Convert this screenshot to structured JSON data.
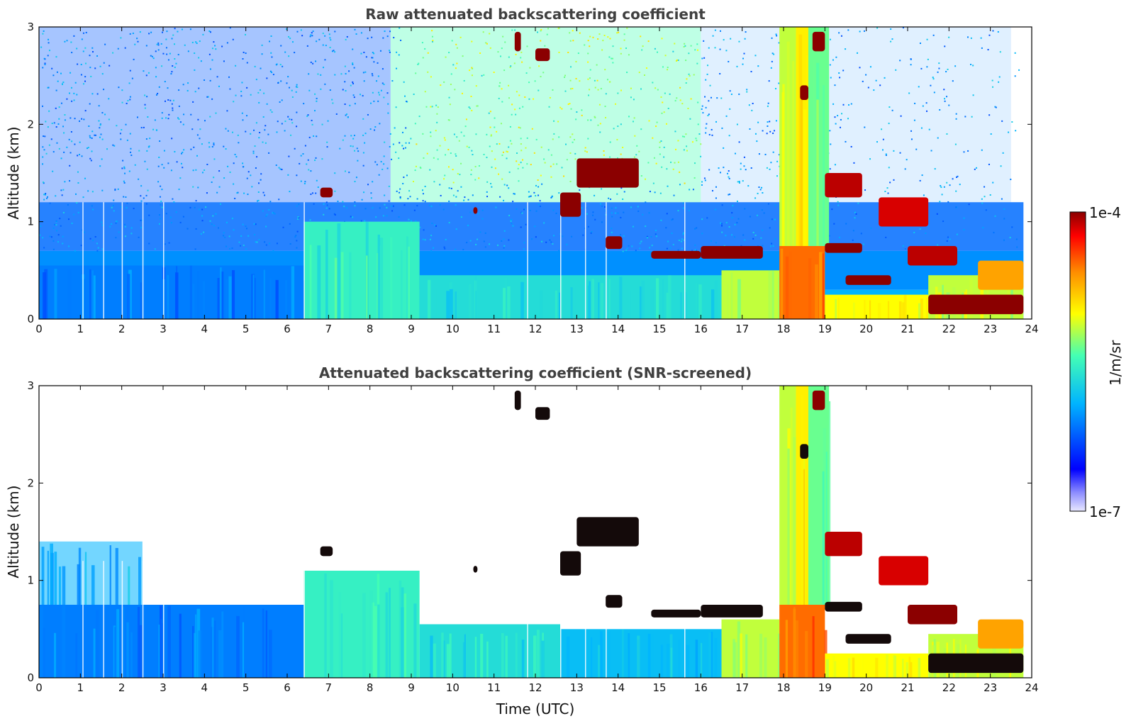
{
  "chart_data": [
    {
      "type": "heatmap",
      "title": "Raw attenuated backscattering coefficient",
      "xlabel": "",
      "ylabel": "Altitude (km)",
      "xlim": [
        0,
        24
      ],
      "ylim": [
        0,
        3
      ],
      "x_ticks": [
        "0",
        "1",
        "2",
        "3",
        "4",
        "5",
        "6",
        "7",
        "8",
        "9",
        "10",
        "11",
        "12",
        "13",
        "14",
        "15",
        "16",
        "17",
        "18",
        "19",
        "20",
        "21",
        "22",
        "23",
        "24"
      ],
      "y_ticks": [
        "0",
        "1",
        "2",
        "3"
      ],
      "data_extent_x": [
        0,
        23.8
      ],
      "background": [
        {
          "y": [
            0,
            0.3
          ],
          "x": [
            0,
            24
          ],
          "level": 0.3
        },
        {
          "y": [
            0.3,
            0.7
          ],
          "x": [
            0,
            24
          ],
          "level": 0.26
        },
        {
          "y": [
            0.7,
            1.2
          ],
          "x": [
            0,
            24
          ],
          "level": 0.22,
          "alpha": 0.85
        },
        {
          "y": [
            1.2,
            3.0
          ],
          "x": [
            0,
            8.5
          ],
          "level": 0.2,
          "alpha": 0.35
        },
        {
          "y": [
            1.2,
            3.0
          ],
          "x": [
            8.5,
            16
          ],
          "level": 0.45,
          "alpha": 0.35
        },
        {
          "y": [
            1.2,
            3.0
          ],
          "x": [
            16,
            23.5
          ],
          "level": 0.25,
          "alpha": 0.12
        }
      ],
      "noise_y_min": 0.7,
      "blocks": [
        {
          "x": [
            0,
            6.4
          ],
          "y": [
            0,
            0.55
          ],
          "level": 0.24
        },
        {
          "x": [
            6.4,
            9.2
          ],
          "y": [
            0,
            1.0
          ],
          "level": 0.42
        },
        {
          "x": [
            9.2,
            16.5
          ],
          "y": [
            0,
            0.45
          ],
          "level": 0.38
        },
        {
          "x": [
            16.5,
            17.9
          ],
          "y": [
            0,
            0.5
          ],
          "level": 0.55
        },
        {
          "x": [
            17.9,
            19.0
          ],
          "y": [
            0,
            0.75
          ],
          "level": 0.78
        },
        {
          "x": [
            17.9,
            18.3
          ],
          "y": [
            0.75,
            3.0
          ],
          "level": 0.55
        },
        {
          "x": [
            18.3,
            18.6
          ],
          "y": [
            0.75,
            3.0
          ],
          "level": 0.62
        },
        {
          "x": [
            18.6,
            19.1
          ],
          "y": [
            0.75,
            3.0
          ],
          "level": 0.48
        },
        {
          "x": [
            19.0,
            21.5
          ],
          "y": [
            0,
            0.25
          ],
          "level": 0.6
        },
        {
          "x": [
            21.5,
            23.8
          ],
          "y": [
            0,
            0.45
          ],
          "level": 0.55
        }
      ],
      "layers": [
        {
          "x": [
            11.5,
            11.65
          ],
          "y": [
            2.75,
            2.95
          ],
          "level": 1.0
        },
        {
          "x": [
            12.0,
            12.35
          ],
          "y": [
            2.65,
            2.78
          ],
          "level": 1.0
        },
        {
          "x": [
            13.0,
            14.5
          ],
          "y": [
            1.35,
            1.65
          ],
          "level": 1.0
        },
        {
          "x": [
            12.6,
            13.1
          ],
          "y": [
            1.05,
            1.3
          ],
          "level": 1.0
        },
        {
          "x": [
            13.7,
            14.1
          ],
          "y": [
            0.72,
            0.85
          ],
          "level": 1.0
        },
        {
          "x": [
            14.8,
            16.0
          ],
          "y": [
            0.62,
            0.7
          ],
          "level": 1.0
        },
        {
          "x": [
            16.0,
            17.5
          ],
          "y": [
            0.62,
            0.75
          ],
          "level": 1.0
        },
        {
          "x": [
            18.7,
            19.0
          ],
          "y": [
            2.75,
            2.95
          ],
          "level": 1.0
        },
        {
          "x": [
            18.4,
            18.6
          ],
          "y": [
            2.25,
            2.4
          ],
          "level": 1.0
        },
        {
          "x": [
            19.0,
            19.9
          ],
          "y": [
            1.25,
            1.5
          ],
          "level": 0.95
        },
        {
          "x": [
            19.0,
            19.9
          ],
          "y": [
            0.68,
            0.78
          ],
          "level": 1.0
        },
        {
          "x": [
            19.5,
            20.6
          ],
          "y": [
            0.35,
            0.45
          ],
          "level": 1.0
        },
        {
          "x": [
            20.3,
            21.5
          ],
          "y": [
            0.95,
            1.25
          ],
          "level": 0.92
        },
        {
          "x": [
            21.0,
            22.2
          ],
          "y": [
            0.55,
            0.75
          ],
          "level": 0.95
        },
        {
          "x": [
            21.5,
            23.8
          ],
          "y": [
            0.05,
            0.25
          ],
          "level": 1.0
        },
        {
          "x": [
            22.7,
            23.8
          ],
          "y": [
            0.3,
            0.6
          ],
          "level": 0.72
        },
        {
          "x": [
            6.8,
            7.1
          ],
          "y": [
            1.25,
            1.35
          ],
          "level": 1.0
        },
        {
          "x": [
            10.5,
            10.6
          ],
          "y": [
            1.08,
            1.15
          ],
          "level": 1.0
        }
      ]
    },
    {
      "type": "heatmap",
      "title": "Attenuated backscattering coefficient (SNR-screened)",
      "xlabel": "Time (UTC)",
      "ylabel": "Altitude (km)",
      "xlim": [
        0,
        24
      ],
      "ylim": [
        0,
        3
      ],
      "x_ticks": [
        "0",
        "1",
        "2",
        "3",
        "4",
        "5",
        "6",
        "7",
        "8",
        "9",
        "10",
        "11",
        "12",
        "13",
        "14",
        "15",
        "16",
        "17",
        "18",
        "19",
        "20",
        "21",
        "22",
        "23",
        "24"
      ],
      "y_ticks": [
        "0",
        "1",
        "2",
        "3"
      ],
      "data_extent_x": [
        0,
        23.8
      ],
      "background": [],
      "noise_y_min": 3.0,
      "blocks": [
        {
          "x": [
            0,
            6.4
          ],
          "y": [
            0,
            0.75
          ],
          "level": 0.24
        },
        {
          "x": [
            0,
            2.5
          ],
          "y": [
            0.75,
            1.4
          ],
          "level": 0.3,
          "alpha": 0.55
        },
        {
          "x": [
            6.4,
            9.2
          ],
          "y": [
            0,
            1.1
          ],
          "level": 0.42
        },
        {
          "x": [
            9.2,
            12.6
          ],
          "y": [
            0,
            0.55
          ],
          "level": 0.38
        },
        {
          "x": [
            12.6,
            16.5
          ],
          "y": [
            0,
            0.5
          ],
          "level": 0.32
        },
        {
          "x": [
            16.5,
            17.9
          ],
          "y": [
            0,
            0.6
          ],
          "level": 0.55
        },
        {
          "x": [
            17.9,
            19.0
          ],
          "y": [
            0,
            0.75
          ],
          "level": 0.78
        },
        {
          "x": [
            17.9,
            18.3
          ],
          "y": [
            0.75,
            3.0
          ],
          "level": 0.55
        },
        {
          "x": [
            18.3,
            18.6
          ],
          "y": [
            0.75,
            3.0
          ],
          "level": 0.62
        },
        {
          "x": [
            18.6,
            19.1
          ],
          "y": [
            0.75,
            3.0
          ],
          "level": 0.48
        },
        {
          "x": [
            19.0,
            21.5
          ],
          "y": [
            0,
            0.25
          ],
          "level": 0.6
        },
        {
          "x": [
            21.5,
            23.8
          ],
          "y": [
            0,
            0.45
          ],
          "level": 0.55
        }
      ],
      "layers": [
        {
          "x": [
            11.5,
            11.65
          ],
          "y": [
            2.75,
            2.95
          ],
          "level": 1.1
        },
        {
          "x": [
            12.0,
            12.35
          ],
          "y": [
            2.65,
            2.78
          ],
          "level": 1.1
        },
        {
          "x": [
            13.0,
            14.5
          ],
          "y": [
            1.35,
            1.65
          ],
          "level": 1.1
        },
        {
          "x": [
            12.6,
            13.1
          ],
          "y": [
            1.05,
            1.3
          ],
          "level": 1.1
        },
        {
          "x": [
            13.7,
            14.1
          ],
          "y": [
            0.72,
            0.85
          ],
          "level": 1.1
        },
        {
          "x": [
            14.8,
            16.0
          ],
          "y": [
            0.62,
            0.7
          ],
          "level": 1.1
        },
        {
          "x": [
            16.0,
            17.5
          ],
          "y": [
            0.62,
            0.75
          ],
          "level": 1.1
        },
        {
          "x": [
            18.7,
            19.0
          ],
          "y": [
            2.75,
            2.95
          ],
          "level": 1.0
        },
        {
          "x": [
            18.4,
            18.6
          ],
          "y": [
            2.25,
            2.4
          ],
          "level": 1.1
        },
        {
          "x": [
            19.0,
            19.9
          ],
          "y": [
            1.25,
            1.5
          ],
          "level": 0.95
        },
        {
          "x": [
            19.0,
            19.9
          ],
          "y": [
            0.68,
            0.78
          ],
          "level": 1.1
        },
        {
          "x": [
            19.5,
            20.6
          ],
          "y": [
            0.35,
            0.45
          ],
          "level": 1.1
        },
        {
          "x": [
            20.3,
            21.5
          ],
          "y": [
            0.95,
            1.25
          ],
          "level": 0.92
        },
        {
          "x": [
            21.0,
            22.2
          ],
          "y": [
            0.55,
            0.75
          ],
          "level": 1.0
        },
        {
          "x": [
            21.5,
            23.8
          ],
          "y": [
            0.05,
            0.25
          ],
          "level": 1.1
        },
        {
          "x": [
            22.7,
            23.8
          ],
          "y": [
            0.3,
            0.6
          ],
          "level": 0.72
        },
        {
          "x": [
            6.8,
            7.1
          ],
          "y": [
            1.25,
            1.35
          ],
          "level": 1.1
        },
        {
          "x": [
            10.5,
            10.6
          ],
          "y": [
            1.08,
            1.15
          ],
          "level": 1.1
        }
      ]
    }
  ],
  "colorbar": {
    "label": "1/m/sr",
    "max_label": "1e-4",
    "min_label": "1e-7",
    "scale": "log",
    "colormap": "jet",
    "colors": [
      "#e8e8ff",
      "#0000ff",
      "#00b4ff",
      "#44ffb4",
      "#ffff00",
      "#ff8c00",
      "#ff0000",
      "#8b0000"
    ]
  }
}
